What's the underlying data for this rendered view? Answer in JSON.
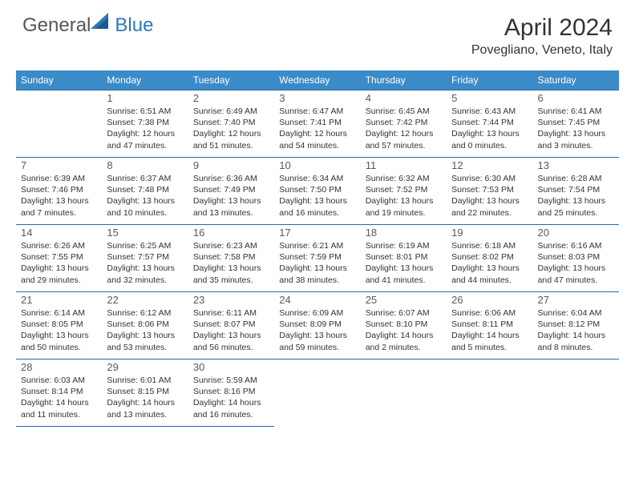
{
  "brand": {
    "text1": "General",
    "text2": "Blue"
  },
  "title": "April 2024",
  "location": "Povegliano, Veneto, Italy",
  "colors": {
    "header_bg": "#3b8bc9",
    "header_text": "#ffffff",
    "border": "#2a6a9e",
    "brand_gray": "#555555",
    "brand_blue": "#2a7ab8",
    "text": "#333333",
    "daynum": "#5a5a5a",
    "background": "#ffffff"
  },
  "day_headers": [
    "Sunday",
    "Monday",
    "Tuesday",
    "Wednesday",
    "Thursday",
    "Friday",
    "Saturday"
  ],
  "weeks": [
    [
      null,
      {
        "n": "1",
        "sr": "6:51 AM",
        "ss": "7:38 PM",
        "dl1": "Daylight: 12 hours",
        "dl2": "and 47 minutes."
      },
      {
        "n": "2",
        "sr": "6:49 AM",
        "ss": "7:40 PM",
        "dl1": "Daylight: 12 hours",
        "dl2": "and 51 minutes."
      },
      {
        "n": "3",
        "sr": "6:47 AM",
        "ss": "7:41 PM",
        "dl1": "Daylight: 12 hours",
        "dl2": "and 54 minutes."
      },
      {
        "n": "4",
        "sr": "6:45 AM",
        "ss": "7:42 PM",
        "dl1": "Daylight: 12 hours",
        "dl2": "and 57 minutes."
      },
      {
        "n": "5",
        "sr": "6:43 AM",
        "ss": "7:44 PM",
        "dl1": "Daylight: 13 hours",
        "dl2": "and 0 minutes."
      },
      {
        "n": "6",
        "sr": "6:41 AM",
        "ss": "7:45 PM",
        "dl1": "Daylight: 13 hours",
        "dl2": "and 3 minutes."
      }
    ],
    [
      {
        "n": "7",
        "sr": "6:39 AM",
        "ss": "7:46 PM",
        "dl1": "Daylight: 13 hours",
        "dl2": "and 7 minutes."
      },
      {
        "n": "8",
        "sr": "6:37 AM",
        "ss": "7:48 PM",
        "dl1": "Daylight: 13 hours",
        "dl2": "and 10 minutes."
      },
      {
        "n": "9",
        "sr": "6:36 AM",
        "ss": "7:49 PM",
        "dl1": "Daylight: 13 hours",
        "dl2": "and 13 minutes."
      },
      {
        "n": "10",
        "sr": "6:34 AM",
        "ss": "7:50 PM",
        "dl1": "Daylight: 13 hours",
        "dl2": "and 16 minutes."
      },
      {
        "n": "11",
        "sr": "6:32 AM",
        "ss": "7:52 PM",
        "dl1": "Daylight: 13 hours",
        "dl2": "and 19 minutes."
      },
      {
        "n": "12",
        "sr": "6:30 AM",
        "ss": "7:53 PM",
        "dl1": "Daylight: 13 hours",
        "dl2": "and 22 minutes."
      },
      {
        "n": "13",
        "sr": "6:28 AM",
        "ss": "7:54 PM",
        "dl1": "Daylight: 13 hours",
        "dl2": "and 25 minutes."
      }
    ],
    [
      {
        "n": "14",
        "sr": "6:26 AM",
        "ss": "7:55 PM",
        "dl1": "Daylight: 13 hours",
        "dl2": "and 29 minutes."
      },
      {
        "n": "15",
        "sr": "6:25 AM",
        "ss": "7:57 PM",
        "dl1": "Daylight: 13 hours",
        "dl2": "and 32 minutes."
      },
      {
        "n": "16",
        "sr": "6:23 AM",
        "ss": "7:58 PM",
        "dl1": "Daylight: 13 hours",
        "dl2": "and 35 minutes."
      },
      {
        "n": "17",
        "sr": "6:21 AM",
        "ss": "7:59 PM",
        "dl1": "Daylight: 13 hours",
        "dl2": "and 38 minutes."
      },
      {
        "n": "18",
        "sr": "6:19 AM",
        "ss": "8:01 PM",
        "dl1": "Daylight: 13 hours",
        "dl2": "and 41 minutes."
      },
      {
        "n": "19",
        "sr": "6:18 AM",
        "ss": "8:02 PM",
        "dl1": "Daylight: 13 hours",
        "dl2": "and 44 minutes."
      },
      {
        "n": "20",
        "sr": "6:16 AM",
        "ss": "8:03 PM",
        "dl1": "Daylight: 13 hours",
        "dl2": "and 47 minutes."
      }
    ],
    [
      {
        "n": "21",
        "sr": "6:14 AM",
        "ss": "8:05 PM",
        "dl1": "Daylight: 13 hours",
        "dl2": "and 50 minutes."
      },
      {
        "n": "22",
        "sr": "6:12 AM",
        "ss": "8:06 PM",
        "dl1": "Daylight: 13 hours",
        "dl2": "and 53 minutes."
      },
      {
        "n": "23",
        "sr": "6:11 AM",
        "ss": "8:07 PM",
        "dl1": "Daylight: 13 hours",
        "dl2": "and 56 minutes."
      },
      {
        "n": "24",
        "sr": "6:09 AM",
        "ss": "8:09 PM",
        "dl1": "Daylight: 13 hours",
        "dl2": "and 59 minutes."
      },
      {
        "n": "25",
        "sr": "6:07 AM",
        "ss": "8:10 PM",
        "dl1": "Daylight: 14 hours",
        "dl2": "and 2 minutes."
      },
      {
        "n": "26",
        "sr": "6:06 AM",
        "ss": "8:11 PM",
        "dl1": "Daylight: 14 hours",
        "dl2": "and 5 minutes."
      },
      {
        "n": "27",
        "sr": "6:04 AM",
        "ss": "8:12 PM",
        "dl1": "Daylight: 14 hours",
        "dl2": "and 8 minutes."
      }
    ],
    [
      {
        "n": "28",
        "sr": "6:03 AM",
        "ss": "8:14 PM",
        "dl1": "Daylight: 14 hours",
        "dl2": "and 11 minutes."
      },
      {
        "n": "29",
        "sr": "6:01 AM",
        "ss": "8:15 PM",
        "dl1": "Daylight: 14 hours",
        "dl2": "and 13 minutes."
      },
      {
        "n": "30",
        "sr": "5:59 AM",
        "ss": "8:16 PM",
        "dl1": "Daylight: 14 hours",
        "dl2": "and 16 minutes."
      },
      null,
      null,
      null,
      null
    ]
  ],
  "labels": {
    "sunrise_prefix": "Sunrise: ",
    "sunset_prefix": "Sunset: "
  }
}
